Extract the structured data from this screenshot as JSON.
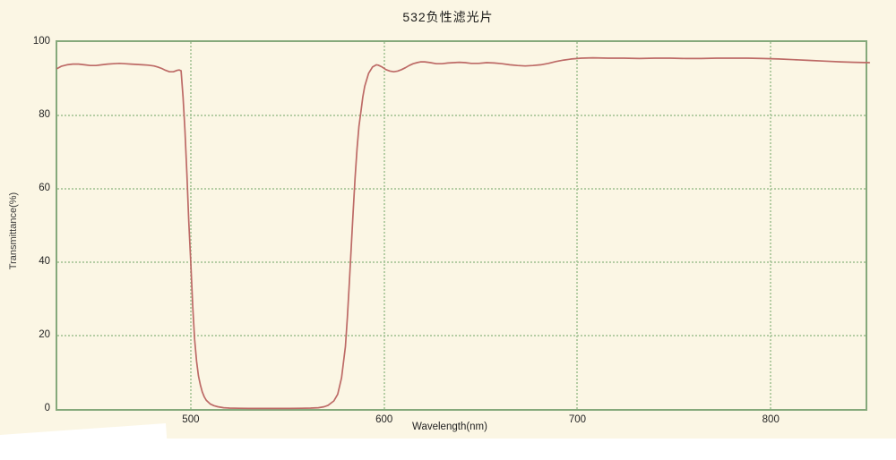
{
  "title": "532负性滤光片",
  "colors": {
    "paper_background": "#fbf6e4",
    "outer_background": "#ffffff",
    "axis_frame": "#85a97b",
    "gridline": "#a9c79a",
    "curve": "#bd6a66",
    "text": "#232323"
  },
  "chart_data": {
    "type": "line",
    "title": "532负性滤光片",
    "xlabel": "Wavelength(nm)",
    "ylabel": "Transmittance(%)",
    "xlim": [
      431,
      849
    ],
    "ylim": [
      0,
      100
    ],
    "x_ticks": [
      500,
      600,
      700,
      800
    ],
    "y_ticks": [
      0,
      20,
      40,
      60,
      80,
      100
    ],
    "grid": "dotted green gridlines at all ticks, solid green border frame",
    "legend": "none",
    "description": "Notch (negative) filter transmission spectrum: ~94% transmission everywhere except a deep blocking band around 500-590 nm (532 nm laser line), where transmission drops to ~0%.",
    "series": [
      {
        "name": "transmittance",
        "color": "#bd6a66",
        "points": [
          [
            431,
            92.8
          ],
          [
            433,
            93.4
          ],
          [
            436,
            93.8
          ],
          [
            439,
            94.0
          ],
          [
            442,
            94.0
          ],
          [
            445,
            93.8
          ],
          [
            448,
            93.6
          ],
          [
            451,
            93.6
          ],
          [
            454,
            93.8
          ],
          [
            457,
            94.0
          ],
          [
            460,
            94.1
          ],
          [
            463,
            94.2
          ],
          [
            466,
            94.1
          ],
          [
            469,
            94.0
          ],
          [
            472,
            93.9
          ],
          [
            475,
            93.8
          ],
          [
            478,
            93.7
          ],
          [
            481,
            93.5
          ],
          [
            483,
            93.2
          ],
          [
            485,
            92.8
          ],
          [
            487,
            92.3
          ],
          [
            489,
            91.9
          ],
          [
            491,
            91.9
          ],
          [
            493,
            92.3
          ],
          [
            494,
            92.4
          ],
          [
            495,
            92.2
          ],
          [
            496,
            85
          ],
          [
            497,
            76
          ],
          [
            498,
            64
          ],
          [
            499,
            51
          ],
          [
            500,
            40
          ],
          [
            501,
            28
          ],
          [
            502,
            19
          ],
          [
            503,
            13
          ],
          [
            504,
            9
          ],
          [
            505,
            6.5
          ],
          [
            506,
            4.6
          ],
          [
            507,
            3.3
          ],
          [
            508,
            2.4
          ],
          [
            510,
            1.4
          ],
          [
            512,
            0.9
          ],
          [
            514,
            0.6
          ],
          [
            517,
            0.35
          ],
          [
            520,
            0.25
          ],
          [
            525,
            0.2
          ],
          [
            530,
            0.15
          ],
          [
            537,
            0.15
          ],
          [
            544,
            0.15
          ],
          [
            551,
            0.15
          ],
          [
            557,
            0.2
          ],
          [
            562,
            0.25
          ],
          [
            566,
            0.35
          ],
          [
            569,
            0.6
          ],
          [
            571,
            1.0
          ],
          [
            574,
            2.2
          ],
          [
            576,
            4.0
          ],
          [
            578,
            8.5
          ],
          [
            580,
            17
          ],
          [
            581,
            25
          ],
          [
            582,
            34
          ],
          [
            583,
            44
          ],
          [
            584,
            54
          ],
          [
            585,
            63
          ],
          [
            586,
            71
          ],
          [
            587,
            77
          ],
          [
            588,
            81
          ],
          [
            589,
            85
          ],
          [
            590,
            88
          ],
          [
            592,
            91.5
          ],
          [
            594,
            93.2
          ],
          [
            596,
            93.8
          ],
          [
            597,
            93.7
          ],
          [
            599,
            93.2
          ],
          [
            601,
            92.5
          ],
          [
            603,
            92.1
          ],
          [
            605,
            91.9
          ],
          [
            607,
            92.1
          ],
          [
            609,
            92.5
          ],
          [
            611,
            93.0
          ],
          [
            613,
            93.6
          ],
          [
            615,
            94.1
          ],
          [
            617,
            94.4
          ],
          [
            619,
            94.6
          ],
          [
            621,
            94.6
          ],
          [
            624,
            94.4
          ],
          [
            627,
            94.1
          ],
          [
            630,
            94.1
          ],
          [
            633,
            94.3
          ],
          [
            636,
            94.4
          ],
          [
            639,
            94.5
          ],
          [
            642,
            94.4
          ],
          [
            645,
            94.2
          ],
          [
            649,
            94.2
          ],
          [
            653,
            94.4
          ],
          [
            657,
            94.3
          ],
          [
            661,
            94.1
          ],
          [
            665,
            93.8
          ],
          [
            669,
            93.6
          ],
          [
            673,
            93.5
          ],
          [
            677,
            93.6
          ],
          [
            681,
            93.8
          ],
          [
            685,
            94.2
          ],
          [
            689,
            94.7
          ],
          [
            693,
            95.1
          ],
          [
            697,
            95.4
          ],
          [
            702,
            95.6
          ],
          [
            708,
            95.7
          ],
          [
            716,
            95.6
          ],
          [
            724,
            95.6
          ],
          [
            732,
            95.5
          ],
          [
            740,
            95.6
          ],
          [
            748,
            95.6
          ],
          [
            756,
            95.5
          ],
          [
            764,
            95.5
          ],
          [
            772,
            95.6
          ],
          [
            780,
            95.6
          ],
          [
            788,
            95.6
          ],
          [
            796,
            95.5
          ],
          [
            804,
            95.4
          ],
          [
            812,
            95.2
          ],
          [
            820,
            95.0
          ],
          [
            828,
            94.8
          ],
          [
            836,
            94.6
          ],
          [
            843,
            94.5
          ],
          [
            851,
            94.4
          ]
        ]
      }
    ]
  }
}
